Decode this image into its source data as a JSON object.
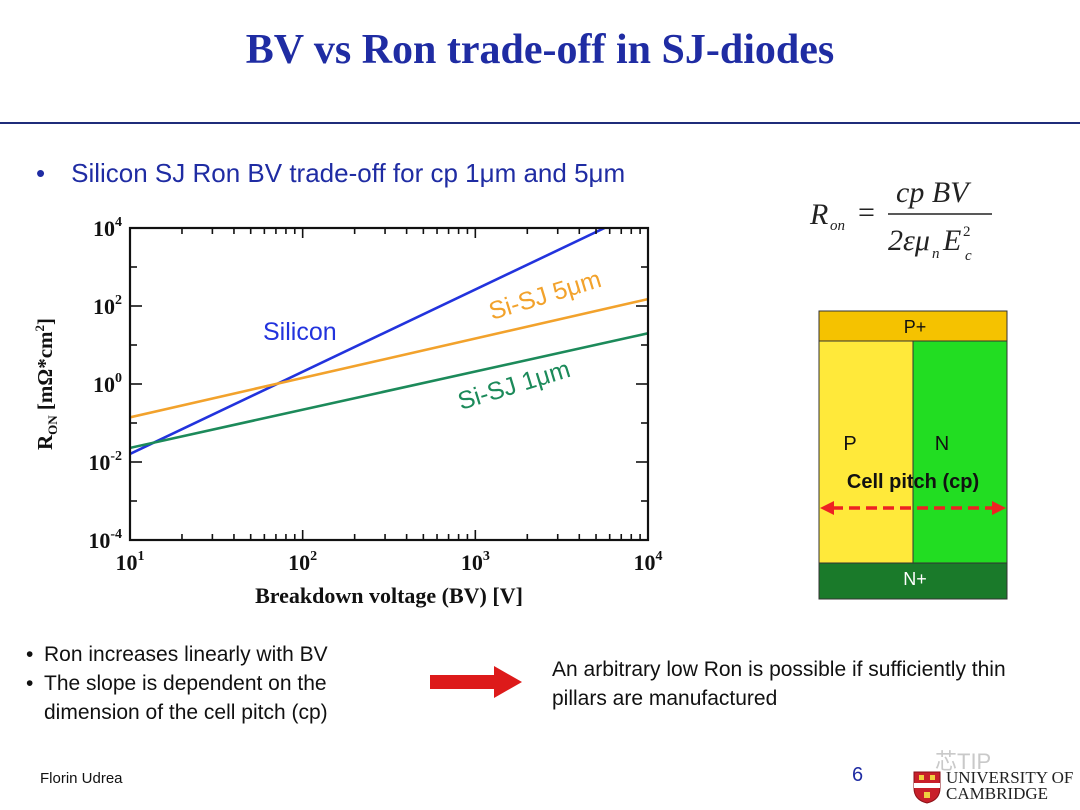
{
  "slide": {
    "title": "BV vs Ron trade-off in SJ-diodes",
    "subtitle": "Silicon SJ Ron BV trade-off  for cp 1μm and 5μm",
    "bullet_char": "•"
  },
  "formula": {
    "lhs": "R",
    "lhs_sub": "on",
    "equals": "=",
    "numerator": "cp BV",
    "denominator_coef": "2εμ",
    "denominator_sub": "n",
    "denominator_var": "E",
    "denominator_sup": "2",
    "denominator_var_sub": "c"
  },
  "chart_data": {
    "type": "line",
    "xscale": "log",
    "yscale": "log",
    "xlim": [
      10,
      10000
    ],
    "ylim": [
      0.0001,
      10000
    ],
    "xlabel": "Breakdown voltage (BV) [V]",
    "ylabel_main": "R",
    "ylabel_sub": "ON",
    "ylabel_rest": " [mΩ*cm",
    "ylabel_sup": "2",
    "ylabel_end": "]",
    "xticks": [
      {
        "base": "10",
        "exp": "1"
      },
      {
        "base": "10",
        "exp": "2"
      },
      {
        "base": "10",
        "exp": "3"
      },
      {
        "base": "10",
        "exp": "4"
      }
    ],
    "yticks": [
      {
        "base": "10",
        "exp": "4"
      },
      {
        "base": "10",
        "exp": "2"
      },
      {
        "base": "10",
        "exp": "0"
      },
      {
        "base": "10",
        "exp": "-2"
      },
      {
        "base": "10",
        "exp": "-4"
      }
    ],
    "grid": false,
    "series": [
      {
        "name": "Silicon",
        "color": "#2233dd",
        "x": [
          10,
          5600
        ],
        "y": [
          0.016,
          10000
        ]
      },
      {
        "name": "Si-SJ 5μm",
        "color": "#f2a22c",
        "x": [
          10,
          10000
        ],
        "y": [
          0.14,
          150
        ]
      },
      {
        "name": "Si-SJ 1μm",
        "color": "#1c8a5a",
        "x": [
          10,
          10000
        ],
        "y": [
          0.023,
          20
        ]
      }
    ]
  },
  "cell": {
    "top": "P+",
    "left": "P",
    "right": "N",
    "pitch": "Cell pitch (cp)",
    "bottom": "N+",
    "colors": {
      "top": "#f5c200",
      "p": "#ffe93a",
      "n": "#22dd22",
      "bottom": "#1a7a2a",
      "arrow": "#ee2222"
    }
  },
  "notes": {
    "line1": "Ron increases linearly with BV",
    "line2": "The slope is dependent on the",
    "line3": "dimension of the cell pitch (cp)"
  },
  "conclusion": {
    "line1": "An arbitrary low Ron is possible if sufficiently thin",
    "line2": "pillars are manufactured"
  },
  "arrow_color": "#dd1a1a",
  "footer": {
    "author": "Florin  Udrea",
    "page": "6",
    "watermark": "芯TIP",
    "university_line1": "UNIVERSITY OF",
    "university_line2": "CAMBRIDGE"
  }
}
